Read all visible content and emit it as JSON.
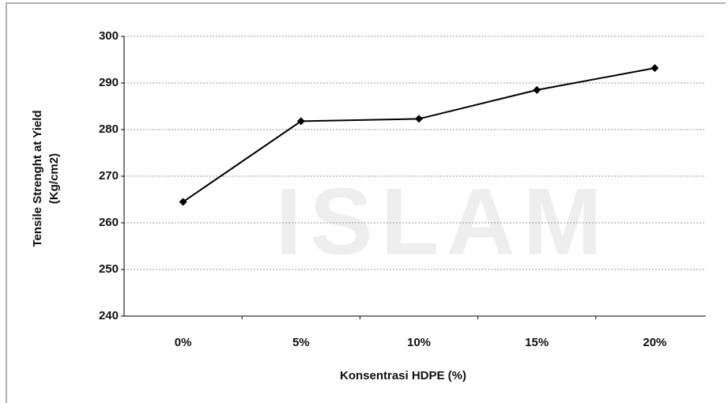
{
  "chart_data": {
    "type": "line",
    "categories": [
      "0%",
      "5%",
      "10%",
      "15%",
      "20%"
    ],
    "series": [
      {
        "name": "Tensile Strenght at Yield",
        "color": "#000000",
        "values": [
          264.5,
          281.8,
          282.3,
          288.5,
          293.2
        ]
      }
    ],
    "ylim": [
      240,
      300
    ],
    "yticks": [
      240,
      250,
      260,
      270,
      280,
      290,
      300
    ],
    "grid": true,
    "ylabel": [
      "Tensile Strenght at Yield",
      "(Kg/cm2)"
    ],
    "xlabel": "Konsentrasi HDPE (%)",
    "watermark": "ISLAM"
  }
}
